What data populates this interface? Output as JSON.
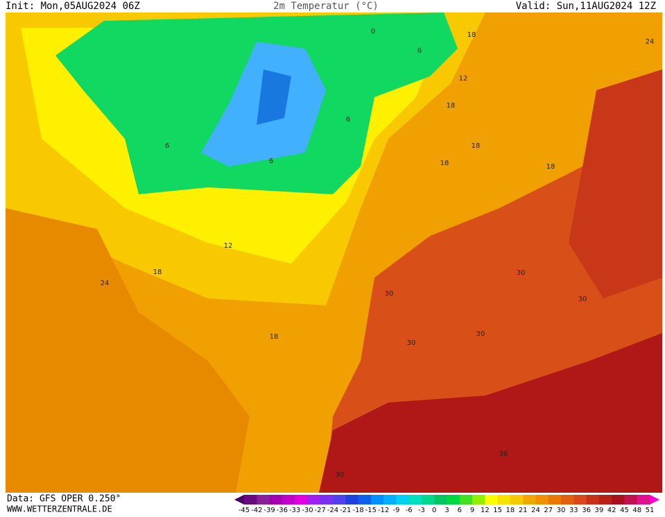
{
  "header": {
    "init": "Init: Mon,05AUG2024 06Z",
    "title": "2m Temperatur (°C)",
    "valid": "Valid: Sun,11AUG2024 12Z"
  },
  "footer": {
    "data": "Data: GFS OPER 0.250°",
    "site": "WWW.WETTERZENTRALE.DE"
  },
  "map": {
    "contour_labels": [
      0,
      6,
      6,
      6,
      6,
      18,
      24,
      12,
      18,
      18,
      18,
      18,
      12,
      18,
      24,
      18,
      30,
      30,
      30,
      30,
      30,
      36,
      30
    ]
  },
  "legend": {
    "labels": [
      -45,
      -42,
      -39,
      -36,
      -33,
      -30,
      -27,
      -24,
      -21,
      -18,
      -15,
      -12,
      -9,
      -6,
      -3,
      0,
      3,
      6,
      9,
      12,
      15,
      18,
      21,
      24,
      27,
      30,
      33,
      36,
      39,
      42,
      45,
      48,
      51
    ],
    "colors": [
      "#4b0060",
      "#6a0a80",
      "#8a2098",
      "#a000b0",
      "#c000c8",
      "#e000e0",
      "#a020f0",
      "#7a30f0",
      "#5040f0",
      "#2040e0",
      "#1060f0",
      "#0090ff",
      "#00b0ff",
      "#00d0f0",
      "#00e0c0",
      "#00d890",
      "#00c860",
      "#00d840",
      "#40e020",
      "#90f000",
      "#ffff00",
      "#f8e000",
      "#f8c800",
      "#f0a800",
      "#f09000",
      "#e87800",
      "#e06010",
      "#d84818",
      "#c83018",
      "#b82018",
      "#a81020",
      "#c01050",
      "#e01090",
      "#ff00d0"
    ]
  }
}
